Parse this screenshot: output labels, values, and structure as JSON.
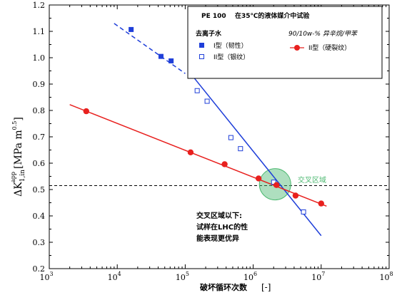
{
  "chart_data": {
    "type": "scatter",
    "xscale": "log",
    "xlim": [
      1000,
      100000000
    ],
    "ylim": [
      0.2,
      1.2
    ],
    "ylabel": {
      "main": "ΔK",
      "sub": "1,in",
      "sup": "app",
      "unit": "[MPa m",
      "unit_sup": "0.5",
      "unit_close": "]"
    },
    "xlabel": {
      "main": "破坏循环次数",
      "unit": "[-]"
    },
    "x_ticks": [
      {
        "value": 1000,
        "base": "10",
        "exp": "3"
      },
      {
        "value": 10000,
        "base": "10",
        "exp": "4"
      },
      {
        "value": 100000,
        "base": "10",
        "exp": "5"
      },
      {
        "value": 1000000,
        "base": "10",
        "exp": "6"
      },
      {
        "value": 10000000,
        "base": "10",
        "exp": "7"
      },
      {
        "value": 100000000,
        "base": "10",
        "exp": "8"
      }
    ],
    "y_ticks": [
      "0.2",
      "0.3",
      "0.4",
      "0.5",
      "0.6",
      "0.7",
      "0.8",
      "0.9",
      "1.0",
      "1.1",
      "1.2"
    ],
    "threshold_y": 0.515,
    "legend": {
      "title": "PE 100",
      "subtitle": "在35℃的液体媒介中试验",
      "group1_title": "去离子水",
      "group2_title": "90/10w-% 异辛烷/甲苯",
      "item1": "I型（韧性）",
      "item2": "II型（银纹）",
      "item3": "II型（硬裂纹）"
    },
    "series": [
      {
        "key": "ductile",
        "marker": "square-filled",
        "color": "#1f3fd9",
        "points": [
          [
            16000,
            1.107
          ],
          [
            44000,
            1.005
          ],
          [
            62000,
            0.988
          ]
        ],
        "fit_dashed": [
          [
            9000,
            1.13
          ],
          [
            100000,
            0.94
          ]
        ]
      },
      {
        "key": "craze",
        "marker": "square-open",
        "color": "#1f3fd9",
        "points": [
          [
            150000,
            0.875
          ],
          [
            210000,
            0.835
          ],
          [
            470000,
            0.697
          ],
          [
            650000,
            0.655
          ],
          [
            2000000,
            0.528
          ],
          [
            5500000,
            0.415
          ]
        ],
        "fit": [
          [
            120000,
            0.94
          ],
          [
            10000000,
            0.325
          ]
        ]
      },
      {
        "key": "hard_crack",
        "marker": "circle-filled",
        "color": "#e8201e",
        "points": [
          [
            3500,
            0.797
          ],
          [
            120000,
            0.641
          ],
          [
            380000,
            0.596
          ],
          [
            1200000,
            0.542
          ],
          [
            2200000,
            0.517
          ],
          [
            4200000,
            0.477
          ],
          [
            10000000,
            0.447
          ]
        ],
        "fit": [
          [
            2000,
            0.822
          ],
          [
            12000000,
            0.437
          ]
        ]
      }
    ],
    "cross_region": {
      "x": 2100000,
      "y": 0.52,
      "label": "交叉区域",
      "color": "#4cb870"
    },
    "annotation": [
      "交叉区域以下:",
      "试样在LHC的性",
      "能表现更优异"
    ]
  }
}
